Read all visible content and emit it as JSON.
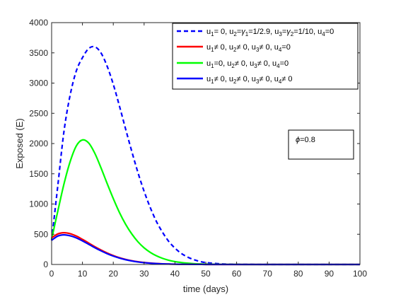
{
  "chart_data": {
    "type": "line",
    "xlabel": "time (days)",
    "ylabel": "Exposed (E)",
    "xlim": [
      0,
      100
    ],
    "ylim": [
      0,
      4000
    ],
    "xticks": [
      0,
      10,
      20,
      30,
      40,
      50,
      60,
      70,
      80,
      90,
      100
    ],
    "yticks": [
      0,
      500,
      1000,
      1500,
      2000,
      2500,
      3000,
      3500,
      4000
    ],
    "grid": false,
    "legend_position": "top-right",
    "annotation": {
      "symbol": "ϕ",
      "text": "=0.8"
    },
    "x": [
      0,
      2,
      4,
      6,
      8,
      10,
      12,
      14,
      16,
      18,
      20,
      22,
      24,
      26,
      28,
      30,
      32,
      34,
      36,
      38,
      40,
      42,
      44,
      46,
      48,
      50,
      55,
      60,
      65,
      70,
      80,
      90,
      100
    ],
    "series": [
      {
        "name": "u1= 0, u2=γ1=1/2.9, u3=γ2=1/10, u4=0",
        "legend": {
          "parts": [
            [
              "u",
              "1",
              "= 0, u"
            ],
            [
              "",
              "2",
              "="
            ],
            [
              "γ",
              "1",
              "=1/2.9, u"
            ],
            [
              "",
              "3",
              "="
            ],
            [
              "γ",
              "2",
              "=1/10, u"
            ],
            [
              "",
              "4",
              "=0"
            ]
          ]
        },
        "color": "#0000ff",
        "dash": true,
        "values": [
          400,
          1300,
          2200,
          2800,
          3200,
          3420,
          3570,
          3600,
          3500,
          3280,
          2980,
          2620,
          2240,
          1870,
          1520,
          1210,
          940,
          710,
          530,
          380,
          270,
          185,
          125,
          82,
          52,
          32,
          10,
          3,
          1,
          0,
          0,
          0,
          0
        ]
      },
      {
        "name": "u1≠ 0, u2≠ 0, u3≠ 0, u4=0",
        "legend": {
          "parts": [
            [
              "u",
              "1",
              "≠ 0, u"
            ],
            [
              "",
              "2",
              "≠ 0, u"
            ],
            [
              "",
              "3",
              "≠ 0, u"
            ],
            [
              "",
              "4",
              "=0"
            ]
          ]
        },
        "color": "#ff0000",
        "dash": false,
        "values": [
          440,
          505,
          525,
          510,
          470,
          415,
          355,
          295,
          240,
          190,
          148,
          112,
          84,
          62,
          45,
          32,
          23,
          16,
          11,
          7,
          5,
          3,
          2,
          1,
          1,
          0,
          0,
          0,
          0,
          0,
          0,
          0,
          0
        ]
      },
      {
        "name": "u1=0, u2≠ 0, u3≠ 0, u4=0",
        "legend": {
          "parts": [
            [
              "u",
              "1",
              "=0, u"
            ],
            [
              "",
              "2",
              "≠ 0, u"
            ],
            [
              "",
              "3",
              "≠ 0, u"
            ],
            [
              "",
              "4",
              "=0"
            ]
          ]
        },
        "color": "#00ff00",
        "dash": false,
        "values": [
          420,
          880,
          1330,
          1700,
          1960,
          2060,
          2010,
          1840,
          1600,
          1340,
          1090,
          860,
          665,
          505,
          375,
          275,
          200,
          143,
          101,
          70,
          48,
          33,
          22,
          14,
          9,
          6,
          2,
          1,
          0,
          0,
          0,
          0,
          0
        ]
      },
      {
        "name": "u1≠ 0, u2≠ 0, u3≠ 0, u4≠ 0",
        "legend": {
          "parts": [
            [
              "u",
              "1",
              "≠ 0, u"
            ],
            [
              "",
              "2",
              "≠ 0, u"
            ],
            [
              "",
              "3",
              "≠ 0, u"
            ],
            [
              "",
              "4",
              "≠ 0"
            ]
          ]
        },
        "color": "#0000ff",
        "dash": false,
        "values": [
          400,
          470,
          490,
          475,
          440,
          390,
          335,
          278,
          226,
          179,
          139,
          106,
          79,
          58,
          42,
          30,
          21,
          15,
          10,
          7,
          4,
          3,
          2,
          1,
          1,
          0,
          0,
          0,
          0,
          0,
          0,
          0,
          0
        ]
      }
    ]
  }
}
